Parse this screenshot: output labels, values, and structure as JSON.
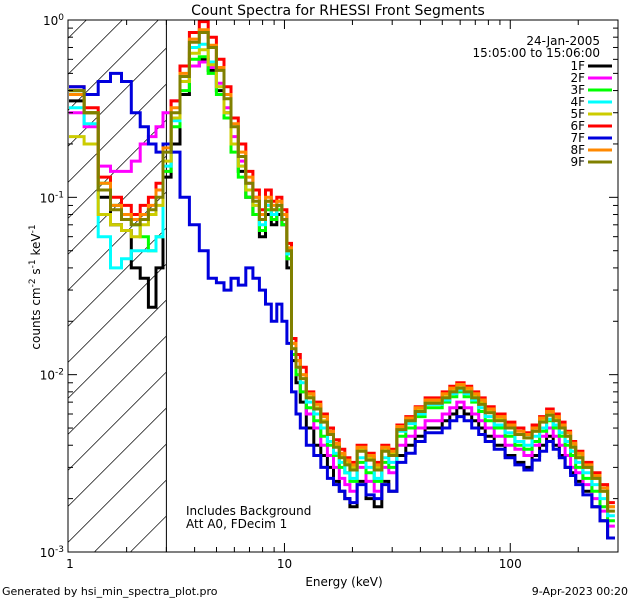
{
  "chart_data": {
    "type": "line",
    "title": "Count Spectra for RHESSI Front Segments",
    "xlabel": "Energy (keV)",
    "ylabel": "counts cm",
    "ylabel_sup1": "-2",
    "ylabel_mid": " s",
    "ylabel_sup2": "-1",
    "ylabel_end": " keV",
    "ylabel_sup3": "-1",
    "xscale": "log",
    "yscale": "log",
    "xlim": [
      1.1,
      300
    ],
    "ylim": [
      0.001,
      1.0
    ],
    "x_ticks": [
      {
        "value": 1,
        "label": "1"
      },
      {
        "value": 10,
        "label": "10"
      },
      {
        "value": 100,
        "label": "100"
      }
    ],
    "y_ticks": [
      {
        "value": 1,
        "base": "10",
        "exp": "0"
      },
      {
        "value": 0.1,
        "base": "10",
        "exp": "-1"
      },
      {
        "value": 0.01,
        "base": "10",
        "exp": "-2"
      },
      {
        "value": 0.001,
        "base": "10",
        "exp": "-3"
      }
    ],
    "hatch_region_max_keV": 3,
    "annotations": {
      "date": "24-Jan-2005",
      "time_range": "15:05:00 to 15:06:00",
      "note1": "Includes Background",
      "note2": "Att A0, FDecim 1"
    },
    "footer_left": "Generated by hsi_min_spectra_plot.pro",
    "footer_right": "9-Apr-2023 00:20",
    "energies": [
      1.2,
      1.4,
      1.6,
      1.8,
      2.0,
      2.2,
      2.4,
      2.6,
      2.8,
      3.0,
      3.3,
      3.6,
      4.0,
      4.4,
      4.8,
      5.2,
      5.6,
      6.0,
      6.5,
      7.0,
      7.5,
      8.0,
      8.5,
      9.0,
      9.5,
      10,
      10.5,
      11,
      11.5,
      12,
      13,
      14,
      15,
      16,
      17,
      18,
      19,
      20,
      22,
      24,
      26,
      28,
      30,
      33,
      36,
      40,
      44,
      48,
      52,
      56,
      60,
      65,
      70,
      75,
      80,
      90,
      100,
      110,
      120,
      130,
      140,
      150,
      160,
      170,
      180,
      190,
      200,
      220,
      240,
      260,
      280
    ],
    "series": [
      {
        "name": "1F",
        "color": "#000000",
        "values": [
          0.35,
          0.3,
          0.1,
          0.07,
          0.065,
          0.04,
          0.035,
          0.024,
          0.04,
          0.13,
          0.2,
          0.38,
          0.55,
          0.6,
          0.52,
          0.4,
          0.3,
          0.2,
          0.14,
          0.1,
          0.08,
          0.06,
          0.08,
          0.07,
          0.08,
          0.07,
          0.04,
          0.012,
          0.009,
          0.007,
          0.005,
          0.004,
          0.0035,
          0.003,
          0.0025,
          0.0022,
          0.002,
          0.0018,
          0.0025,
          0.002,
          0.0018,
          0.0025,
          0.0022,
          0.0035,
          0.004,
          0.0045,
          0.005,
          0.005,
          0.0055,
          0.006,
          0.0065,
          0.006,
          0.0055,
          0.005,
          0.0045,
          0.004,
          0.0035,
          0.0032,
          0.003,
          0.0035,
          0.004,
          0.0045,
          0.004,
          0.0035,
          0.003,
          0.0028,
          0.0025,
          0.0022,
          0.0018,
          0.0015,
          0.0012
        ]
      },
      {
        "name": "2F",
        "color": "#ff00ff",
        "values": [
          0.3,
          0.25,
          0.15,
          0.14,
          0.14,
          0.16,
          0.2,
          0.22,
          0.25,
          0.3,
          0.35,
          0.45,
          0.55,
          0.58,
          0.54,
          0.44,
          0.32,
          0.22,
          0.16,
          0.12,
          0.1,
          0.08,
          0.09,
          0.08,
          0.09,
          0.07,
          0.045,
          0.013,
          0.01,
          0.008,
          0.006,
          0.005,
          0.004,
          0.0035,
          0.003,
          0.0026,
          0.0024,
          0.0022,
          0.003,
          0.0025,
          0.0022,
          0.003,
          0.0028,
          0.004,
          0.0045,
          0.005,
          0.0055,
          0.0055,
          0.006,
          0.0065,
          0.007,
          0.0065,
          0.006,
          0.0055,
          0.005,
          0.0045,
          0.004,
          0.0038,
          0.0035,
          0.004,
          0.0045,
          0.005,
          0.0045,
          0.004,
          0.0035,
          0.003,
          0.0028,
          0.0024,
          0.002,
          0.0017,
          0.0014
        ]
      },
      {
        "name": "3F",
        "color": "#00ff00",
        "values": [
          0.4,
          0.3,
          0.12,
          0.09,
          0.08,
          0.07,
          0.06,
          0.05,
          0.06,
          0.14,
          0.25,
          0.4,
          0.6,
          0.62,
          0.5,
          0.38,
          0.28,
          0.18,
          0.13,
          0.1,
          0.08,
          0.065,
          0.085,
          0.075,
          0.085,
          0.07,
          0.045,
          0.013,
          0.01,
          0.008,
          0.0065,
          0.0055,
          0.0045,
          0.004,
          0.0035,
          0.003,
          0.0028,
          0.0025,
          0.0032,
          0.0028,
          0.0025,
          0.0032,
          0.003,
          0.0045,
          0.005,
          0.0058,
          0.0065,
          0.0065,
          0.007,
          0.0075,
          0.008,
          0.0075,
          0.007,
          0.0062,
          0.0055,
          0.005,
          0.0045,
          0.004,
          0.0038,
          0.0042,
          0.0048,
          0.0055,
          0.005,
          0.0045,
          0.004,
          0.0035,
          0.003,
          0.0026,
          0.0022,
          0.0018,
          0.0015
        ]
      },
      {
        "name": "4F",
        "color": "#00ffff",
        "values": [
          0.32,
          0.26,
          0.06,
          0.04,
          0.045,
          0.05,
          0.05,
          0.05,
          0.06,
          0.15,
          0.27,
          0.45,
          0.7,
          0.73,
          0.58,
          0.42,
          0.3,
          0.2,
          0.15,
          0.11,
          0.09,
          0.07,
          0.09,
          0.08,
          0.09,
          0.075,
          0.048,
          0.014,
          0.011,
          0.009,
          0.007,
          0.006,
          0.005,
          0.0042,
          0.0036,
          0.0032,
          0.0028,
          0.0026,
          0.0034,
          0.003,
          0.0026,
          0.0034,
          0.0032,
          0.0048,
          0.0053,
          0.006,
          0.0068,
          0.0068,
          0.0072,
          0.0078,
          0.0082,
          0.0078,
          0.0072,
          0.0065,
          0.0058,
          0.0052,
          0.0047,
          0.0042,
          0.004,
          0.0045,
          0.005,
          0.0056,
          0.0052,
          0.0047,
          0.0042,
          0.0037,
          0.0032,
          0.0028,
          0.0024,
          0.002,
          0.0016
        ]
      },
      {
        "name": "5F",
        "color": "#cccc00",
        "values": [
          0.22,
          0.2,
          0.08,
          0.07,
          0.065,
          0.06,
          0.07,
          0.08,
          0.09,
          0.16,
          0.28,
          0.45,
          0.65,
          0.68,
          0.56,
          0.42,
          0.3,
          0.2,
          0.15,
          0.11,
          0.09,
          0.075,
          0.095,
          0.085,
          0.095,
          0.08,
          0.05,
          0.015,
          0.012,
          0.01,
          0.0075,
          0.0065,
          0.0055,
          0.0047,
          0.004,
          0.0035,
          0.0032,
          0.003,
          0.0038,
          0.0034,
          0.003,
          0.0038,
          0.0036,
          0.005,
          0.0056,
          0.0064,
          0.007,
          0.007,
          0.0075,
          0.0082,
          0.0087,
          0.0082,
          0.0076,
          0.007,
          0.0062,
          0.0056,
          0.005,
          0.0046,
          0.0044,
          0.0048,
          0.0055,
          0.006,
          0.0056,
          0.005,
          0.0045,
          0.004,
          0.0035,
          0.003,
          0.0026,
          0.0022,
          0.0018
        ]
      },
      {
        "name": "6F",
        "color": "#ff0000",
        "values": [
          0.42,
          0.32,
          0.13,
          0.1,
          0.09,
          0.08,
          0.09,
          0.1,
          0.12,
          0.2,
          0.35,
          0.55,
          0.85,
          0.98,
          0.8,
          0.6,
          0.42,
          0.28,
          0.2,
          0.14,
          0.11,
          0.085,
          0.11,
          0.095,
          0.1,
          0.085,
          0.055,
          0.016,
          0.013,
          0.011,
          0.008,
          0.007,
          0.006,
          0.005,
          0.0043,
          0.0038,
          0.0034,
          0.0032,
          0.004,
          0.0036,
          0.0032,
          0.004,
          0.0038,
          0.0052,
          0.0058,
          0.0066,
          0.0074,
          0.0074,
          0.008,
          0.0086,
          0.009,
          0.0086,
          0.008,
          0.0074,
          0.0066,
          0.006,
          0.0054,
          0.005,
          0.0047,
          0.0052,
          0.0058,
          0.0064,
          0.006,
          0.0054,
          0.0048,
          0.0042,
          0.0037,
          0.0032,
          0.0028,
          0.0024,
          0.0019
        ]
      },
      {
        "name": "7F",
        "color": "#0000dd",
        "values": [
          0.42,
          0.38,
          0.45,
          0.5,
          0.45,
          0.3,
          0.25,
          0.2,
          0.18,
          0.2,
          0.18,
          0.1,
          0.07,
          0.05,
          0.035,
          0.033,
          0.03,
          0.035,
          0.032,
          0.04,
          0.035,
          0.03,
          0.025,
          0.02,
          0.025,
          0.02,
          0.015,
          0.008,
          0.006,
          0.005,
          0.004,
          0.0035,
          0.003,
          0.0026,
          0.0024,
          0.0022,
          0.002,
          0.0019,
          0.0024,
          0.0021,
          0.002,
          0.0024,
          0.0022,
          0.0032,
          0.0036,
          0.0042,
          0.0047,
          0.0047,
          0.005,
          0.0055,
          0.0058,
          0.0055,
          0.005,
          0.0046,
          0.0042,
          0.0038,
          0.0034,
          0.0031,
          0.0029,
          0.0033,
          0.0037,
          0.0042,
          0.0038,
          0.0034,
          0.003,
          0.0027,
          0.0024,
          0.0021,
          0.0018,
          0.0015,
          0.0012
        ]
      },
      {
        "name": "8F",
        "color": "#ff8800",
        "values": [
          0.38,
          0.3,
          0.12,
          0.09,
          0.08,
          0.075,
          0.08,
          0.09,
          0.11,
          0.19,
          0.32,
          0.5,
          0.78,
          0.88,
          0.72,
          0.54,
          0.38,
          0.26,
          0.18,
          0.13,
          0.1,
          0.08,
          0.1,
          0.09,
          0.095,
          0.08,
          0.052,
          0.015,
          0.012,
          0.01,
          0.0078,
          0.0068,
          0.0058,
          0.0048,
          0.0041,
          0.0036,
          0.0033,
          0.0031,
          0.0039,
          0.0035,
          0.0031,
          0.0039,
          0.0037,
          0.0051,
          0.0057,
          0.0065,
          0.0072,
          0.0072,
          0.0078,
          0.0084,
          0.0088,
          0.0084,
          0.0078,
          0.0072,
          0.0064,
          0.0058,
          0.0052,
          0.0048,
          0.0046,
          0.005,
          0.0057,
          0.0062,
          0.0058,
          0.0052,
          0.0047,
          0.0041,
          0.0036,
          0.0031,
          0.0027,
          0.0023,
          0.0018
        ]
      },
      {
        "name": "9F",
        "color": "#808000",
        "values": [
          0.4,
          0.3,
          0.11,
          0.085,
          0.075,
          0.07,
          0.075,
          0.085,
          0.1,
          0.18,
          0.3,
          0.48,
          0.75,
          0.85,
          0.7,
          0.52,
          0.36,
          0.25,
          0.17,
          0.12,
          0.095,
          0.075,
          0.095,
          0.085,
          0.09,
          0.075,
          0.05,
          0.014,
          0.011,
          0.0095,
          0.0074,
          0.0064,
          0.0054,
          0.0046,
          0.0039,
          0.0034,
          0.0031,
          0.0029,
          0.0037,
          0.0033,
          0.0029,
          0.0037,
          0.0035,
          0.0049,
          0.0055,
          0.0062,
          0.0069,
          0.0069,
          0.0074,
          0.008,
          0.0084,
          0.008,
          0.0074,
          0.0068,
          0.0061,
          0.0055,
          0.005,
          0.0046,
          0.0044,
          0.0048,
          0.0054,
          0.0059,
          0.0055,
          0.005,
          0.0045,
          0.0039,
          0.0034,
          0.003,
          0.0026,
          0.0022,
          0.0017
        ]
      }
    ]
  }
}
